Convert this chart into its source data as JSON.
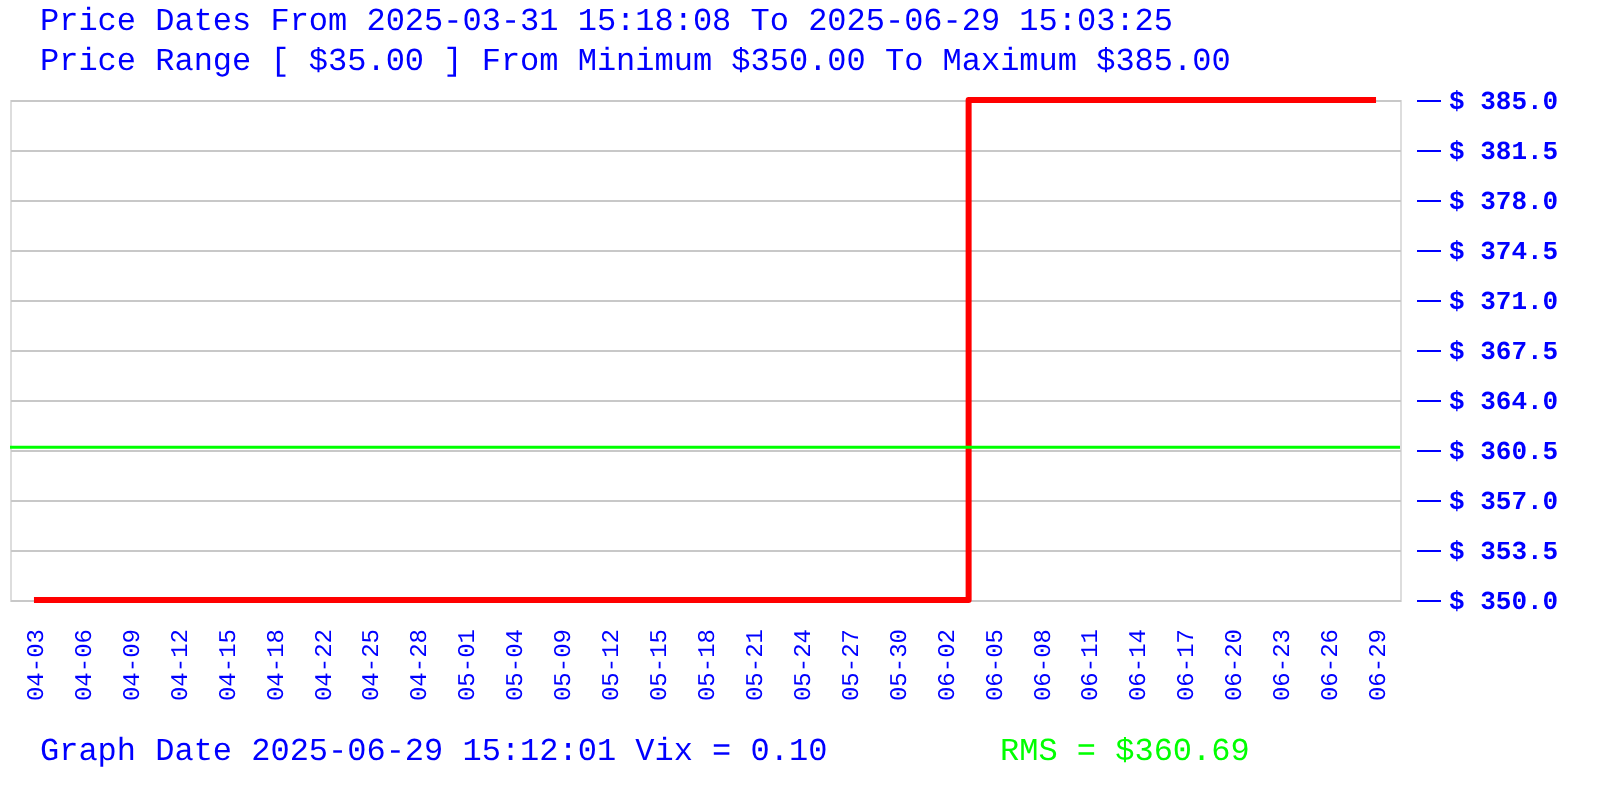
{
  "chart_data": {
    "type": "step",
    "title": "Price Dates From 2025-03-31 15:18:08 To 2025-06-29 15:03:25",
    "subtitle": "Price Range [ $35.00 ] From Minimum $350.00 To Maximum $385.00",
    "categories": [
      "04-03",
      "04-06",
      "04-09",
      "04-12",
      "04-15",
      "04-18",
      "04-22",
      "04-25",
      "04-28",
      "05-01",
      "05-04",
      "05-09",
      "05-12",
      "05-15",
      "05-18",
      "05-21",
      "05-24",
      "05-27",
      "05-30",
      "06-02",
      "06-05",
      "06-08",
      "06-11",
      "06-14",
      "06-17",
      "06-20",
      "06-23",
      "06-26",
      "06-29"
    ],
    "series": [
      {
        "color": "#ff0000",
        "values": [
          350,
          350,
          350,
          350,
          350,
          350,
          350,
          350,
          350,
          350,
          350,
          350,
          350,
          350,
          350,
          350,
          350,
          350,
          350,
          350,
          385,
          385,
          385,
          385,
          385,
          385,
          385,
          385,
          385
        ]
      }
    ],
    "ylim": [
      350,
      385
    ],
    "yticks": [
      {
        "value": 350,
        "label": "$ 350.0"
      },
      {
        "value": 353.5,
        "label": "$ 353.5"
      },
      {
        "value": 357,
        "label": "$ 357.0"
      },
      {
        "value": 360.5,
        "label": "$ 360.5"
      },
      {
        "value": 364,
        "label": "$ 364.0"
      },
      {
        "value": 367.5,
        "label": "$ 367.5"
      },
      {
        "value": 371,
        "label": "$ 371.0"
      },
      {
        "value": 374.5,
        "label": "$ 374.5"
      },
      {
        "value": 378,
        "label": "$ 378.0"
      },
      {
        "value": 381.5,
        "label": "$ 381.5"
      },
      {
        "value": 385,
        "label": "$ 385.0"
      }
    ],
    "ref_lines": [
      {
        "axis": "y",
        "value": 360.69,
        "label": "RMS = $360.69",
        "color": "#00ff00"
      }
    ],
    "annotations": [
      "Graph Date 2025-06-29 15:12:01 Vix = 0.10"
    ],
    "grid": "y"
  }
}
